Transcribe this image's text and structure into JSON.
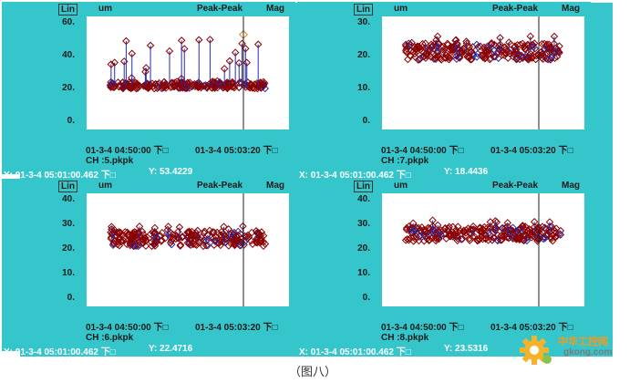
{
  "caption": "（图八）",
  "watermark": {
    "title": "中华工控网",
    "url": "gkong.com",
    "icon": "gear-icon"
  },
  "colors": {
    "background": "#35c6cc",
    "plot_bg": "#ffffff",
    "marker": "#8b0000",
    "spike": "#1f2bb0",
    "spike_alt": "#e0862a"
  },
  "panels": [
    {
      "scale": "Lin",
      "units": "um",
      "measure": "Peak-Peak",
      "mode": "Mag",
      "y_ticks": [
        "60.",
        "40.",
        "20.",
        "0."
      ],
      "x_start": "01-3-4 04:50:00 下□",
      "x_end": "01-3-4 05:03:20 下□",
      "channel": "CH :5.pkpk",
      "cursor_x": "X: 01-3-4 05:01:00.462 下□",
      "cursor_y": "Y: 53.4229"
    },
    {
      "scale": "Lin",
      "units": "um",
      "measure": "Peak-Peak",
      "mode": "Mag",
      "y_ticks": [
        "30.",
        "20.",
        "10.",
        "0."
      ],
      "x_start": "01-3-4 04:50:00 下□",
      "x_end": "01-3-4 05:03:20 下□",
      "channel": "CH :7.pkpk",
      "cursor_x": "X: 01-3-4 05:01:00.462 下□",
      "cursor_y": "Y: 18.4436"
    },
    {
      "scale": "Lin",
      "units": "um",
      "measure": "Peak-Peak",
      "mode": "Mag",
      "y_ticks": [
        "40.",
        "30.",
        "20.",
        "10.",
        "0."
      ],
      "x_start": "01-3-4 04:50:00 下□",
      "x_end": "01-3-4 05:03:20 下□",
      "channel": "CH :6.pkpk",
      "cursor_x": "X: 01-3-4 05:01:00.462 下□",
      "cursor_y": "Y: 22.4716"
    },
    {
      "scale": "Lin",
      "units": "um",
      "measure": "Peak-Peak",
      "mode": "Mag",
      "y_ticks": [
        "40.",
        "30.",
        "20.",
        "10.",
        "0."
      ],
      "x_start": "01-3-4 04:50:00 下□",
      "x_end": "01-3-4 05:03:20 下□",
      "channel": "CH :8.pkpk",
      "cursor_x": "X: 01-3-4 05:01:00.462 下□",
      "cursor_y": "Y: 23.5316"
    }
  ],
  "chart_data": [
    {
      "type": "scatter",
      "title": "CH :5.pkpk",
      "ylabel": "um",
      "ylim": [
        0,
        60
      ],
      "baseline_mean": 22.5,
      "baseline_spread": 4,
      "spike_max": 53.4,
      "cursor_value": 53.4229,
      "grid": false
    },
    {
      "type": "scatter",
      "title": "CH :7.pkpk",
      "ylabel": "um",
      "ylim": [
        0,
        30
      ],
      "baseline_mean": 21.5,
      "baseline_spread": 5,
      "spike_max": 28,
      "cursor_value": 18.4436,
      "grid": false
    },
    {
      "type": "scatter",
      "title": "CH :6.pkpk",
      "ylabel": "um",
      "ylim": [
        0,
        40
      ],
      "baseline_mean": 24.5,
      "baseline_spread": 6,
      "spike_max": 30,
      "cursor_value": 22.4716,
      "grid": false
    },
    {
      "type": "scatter",
      "title": "CH :8.pkpk",
      "ylabel": "um",
      "ylim": [
        0,
        40
      ],
      "baseline_mean": 26.5,
      "baseline_spread": 6,
      "spike_max": 32,
      "cursor_value": 23.5316,
      "grid": false
    }
  ]
}
